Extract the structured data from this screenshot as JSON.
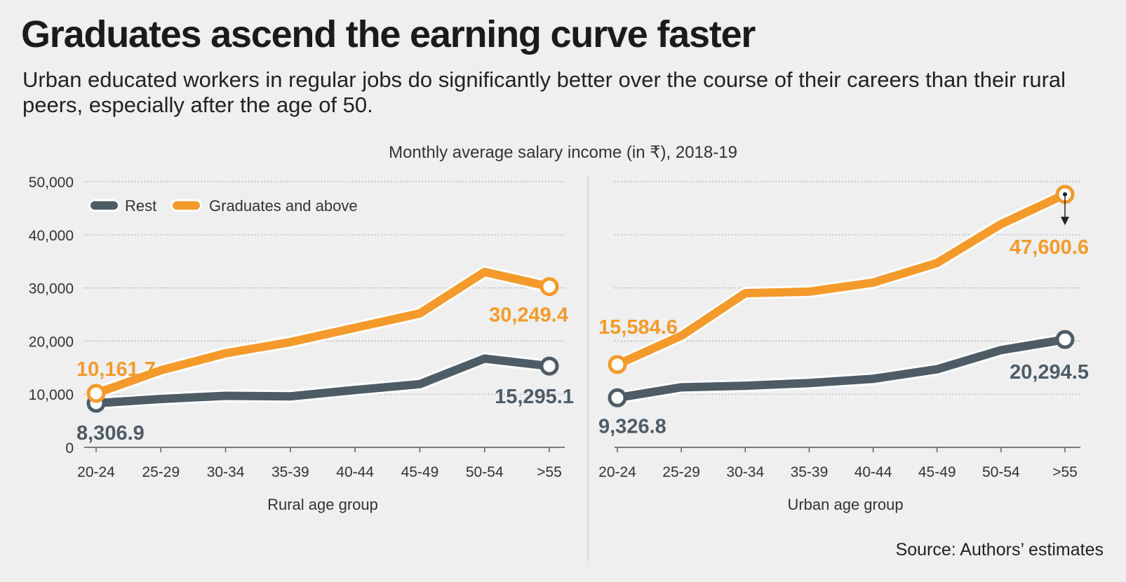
{
  "header": {
    "title": "Graduates ascend the earning curve faster",
    "subtitle": "Urban educated workers in regular jobs do significantly better over the course of their careers than their rural peers, especially after the age of 50."
  },
  "footer": {
    "source": "Source: Authors’ estimates"
  },
  "colors": {
    "rest": "#4e5c66",
    "graduates": "#f39a2b",
    "background": "#efefef"
  },
  "chart_data": {
    "title": "Monthly average salary income (in ₹),  2018-19",
    "type": "line",
    "legend": {
      "placement": "top-left",
      "entries": [
        "Rest",
        "Graduates and above"
      ]
    },
    "grid": true,
    "ylim": [
      0,
      50000
    ],
    "yticks": [
      0,
      10000,
      20000,
      30000,
      40000,
      50000
    ],
    "ytick_labels": [
      "0",
      "10,000",
      "20,000",
      "30,000",
      "40,000",
      "50,000"
    ],
    "panels": [
      {
        "xlabel": "Rural age group",
        "categories": [
          "20-24",
          "25-29",
          "30-34",
          "35-39",
          "40-44",
          "45-49",
          "50-54",
          ">55"
        ],
        "series": [
          {
            "name": "Rest",
            "values": [
              8306.9,
              9100,
              9700,
              9600,
              10800,
              11900,
              16700,
              15295.1
            ]
          },
          {
            "name": "Graduates and above",
            "values": [
              10161.7,
              14500,
              17700,
              19800,
              22500,
              25200,
              33000,
              30249.4
            ]
          }
        ],
        "annotations": [
          {
            "series": "Rest",
            "index": 0,
            "text": "8,306.9"
          },
          {
            "series": "Rest",
            "index": 7,
            "text": "15,295.1"
          },
          {
            "series": "Graduates and above",
            "index": 0,
            "text": "10,161.7"
          },
          {
            "series": "Graduates and above",
            "index": 7,
            "text": "30,249.4"
          }
        ]
      },
      {
        "xlabel": "Urban age group",
        "categories": [
          "20-24",
          "25-29",
          "30-34",
          "35-39",
          "40-44",
          "45-49",
          "50-54",
          ">55"
        ],
        "series": [
          {
            "name": "Rest",
            "values": [
              9326.8,
              11300,
              11600,
              12100,
              12900,
              14700,
              18300,
              20294.5
            ]
          },
          {
            "name": "Graduates and above",
            "values": [
              15584.6,
              21000,
              29000,
              29300,
              31000,
              34700,
              42000,
              47600.6
            ]
          }
        ],
        "annotations": [
          {
            "series": "Rest",
            "index": 0,
            "text": "9,326.8"
          },
          {
            "series": "Rest",
            "index": 7,
            "text": "20,294.5"
          },
          {
            "series": "Graduates and above",
            "index": 0,
            "text": "15,584.6"
          },
          {
            "series": "Graduates and above",
            "index": 7,
            "text": "47,600.6"
          }
        ]
      }
    ]
  }
}
